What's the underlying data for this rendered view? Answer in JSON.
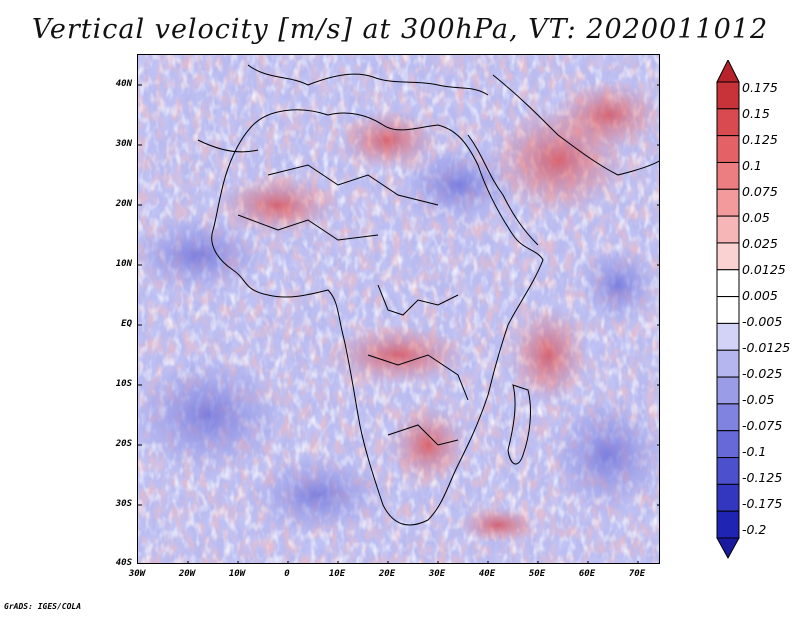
{
  "title": "Vertical velocity [m/s] at 300hPa, VT: 2020011012",
  "credit": "GrADS: IGES/COLA",
  "map": {
    "lat_labels": [
      "40N",
      "30N",
      "20N",
      "10N",
      "EQ",
      "10S",
      "20S",
      "30S",
      "40S"
    ],
    "lon_labels": [
      "30W",
      "20W",
      "10W",
      "0",
      "10E",
      "20E",
      "30E",
      "40E",
      "50E",
      "60E",
      "70E"
    ],
    "lat_range": [
      -40,
      45
    ],
    "lon_range": [
      -30,
      75
    ]
  },
  "colorbar": {
    "labels": [
      "0.175",
      "0.15",
      "0.125",
      "0.1",
      "0.075",
      "0.05",
      "0.025",
      "0.0125",
      "0.005",
      "-0.005",
      "-0.0125",
      "-0.025",
      "-0.05",
      "-0.075",
      "-0.1",
      "-0.125",
      "-0.175",
      "-0.2"
    ],
    "colors": [
      "#b8222a",
      "#c8333a",
      "#d84a4f",
      "#e46266",
      "#ec7d80",
      "#f29a9c",
      "#f6b6b7",
      "#fad2d2",
      "#ffffff",
      "#ffffff",
      "#d2d3f6",
      "#b5b6ef",
      "#9a9ce8",
      "#8083e0",
      "#6669d7",
      "#4d50cc",
      "#3336bf",
      "#2024b2",
      "#1a1aa0"
    ]
  }
}
